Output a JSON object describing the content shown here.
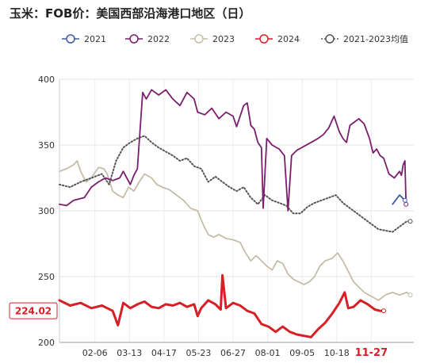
{
  "chart_data": {
    "type": "line",
    "title": "玉米：FOB价：美国西部沿海港口地区（日）",
    "ylim": [
      200,
      400
    ],
    "y_ticks": [
      200,
      250,
      300,
      350,
      400
    ],
    "x_ticks": [
      "02-06",
      "03-13",
      "04-17",
      "05-23",
      "06-27",
      "08-01",
      "09-05",
      "10-18",
      "11-27"
    ],
    "grid": true,
    "legend_position": "top",
    "last_value_label": "224.02",
    "series": [
      {
        "name": "2021",
        "color": "#3d5aa8",
        "style": "solid",
        "points": [
          [
            0.94,
            305
          ],
          [
            0.96,
            312
          ],
          [
            0.975,
            308
          ]
        ]
      },
      {
        "name": "2022",
        "color": "#7a1e6e",
        "style": "solid",
        "points": [
          [
            0.0,
            305
          ],
          [
            0.02,
            304
          ],
          [
            0.04,
            308
          ],
          [
            0.07,
            310
          ],
          [
            0.09,
            318
          ],
          [
            0.11,
            322
          ],
          [
            0.13,
            325
          ],
          [
            0.15,
            323
          ],
          [
            0.17,
            325
          ],
          [
            0.18,
            330
          ],
          [
            0.2,
            320
          ],
          [
            0.21,
            327
          ],
          [
            0.22,
            332
          ],
          [
            0.235,
            390
          ],
          [
            0.245,
            385
          ],
          [
            0.26,
            392
          ],
          [
            0.28,
            388
          ],
          [
            0.3,
            392
          ],
          [
            0.32,
            385
          ],
          [
            0.34,
            380
          ],
          [
            0.36,
            390
          ],
          [
            0.38,
            385
          ],
          [
            0.39,
            375
          ],
          [
            0.41,
            373
          ],
          [
            0.43,
            378
          ],
          [
            0.45,
            370
          ],
          [
            0.47,
            375
          ],
          [
            0.49,
            372
          ],
          [
            0.5,
            364
          ],
          [
            0.52,
            380
          ],
          [
            0.53,
            382
          ],
          [
            0.54,
            365
          ],
          [
            0.55,
            362
          ],
          [
            0.56,
            352
          ],
          [
            0.57,
            348
          ],
          [
            0.575,
            302
          ],
          [
            0.585,
            355
          ],
          [
            0.6,
            350
          ],
          [
            0.62,
            347
          ],
          [
            0.635,
            342
          ],
          [
            0.645,
            300
          ],
          [
            0.655,
            342
          ],
          [
            0.67,
            346
          ],
          [
            0.69,
            349
          ],
          [
            0.71,
            352
          ],
          [
            0.73,
            355
          ],
          [
            0.745,
            358
          ],
          [
            0.76,
            363
          ],
          [
            0.775,
            372
          ],
          [
            0.79,
            360
          ],
          [
            0.8,
            355
          ],
          [
            0.81,
            352
          ],
          [
            0.82,
            365
          ],
          [
            0.835,
            368
          ],
          [
            0.845,
            370
          ],
          [
            0.86,
            366
          ],
          [
            0.875,
            355
          ],
          [
            0.885,
            344
          ],
          [
            0.895,
            347
          ],
          [
            0.905,
            342
          ],
          [
            0.915,
            340
          ],
          [
            0.93,
            328
          ],
          [
            0.945,
            325
          ],
          [
            0.96,
            330
          ],
          [
            0.965,
            327
          ],
          [
            0.97,
            335
          ],
          [
            0.975,
            338
          ],
          [
            0.978,
            305
          ]
        ]
      },
      {
        "name": "2023",
        "color": "#c8bca8",
        "style": "solid",
        "points": [
          [
            0.0,
            330
          ],
          [
            0.02,
            332
          ],
          [
            0.04,
            335
          ],
          [
            0.05,
            338
          ],
          [
            0.06,
            330
          ],
          [
            0.075,
            322
          ],
          [
            0.09,
            325
          ],
          [
            0.11,
            333
          ],
          [
            0.125,
            332
          ],
          [
            0.135,
            328
          ],
          [
            0.15,
            315
          ],
          [
            0.165,
            312
          ],
          [
            0.18,
            310
          ],
          [
            0.195,
            318
          ],
          [
            0.21,
            315
          ],
          [
            0.225,
            322
          ],
          [
            0.24,
            328
          ],
          [
            0.26,
            325
          ],
          [
            0.275,
            320
          ],
          [
            0.29,
            318
          ],
          [
            0.31,
            316
          ],
          [
            0.33,
            312
          ],
          [
            0.35,
            308
          ],
          [
            0.37,
            302
          ],
          [
            0.39,
            300
          ],
          [
            0.405,
            290
          ],
          [
            0.42,
            282
          ],
          [
            0.435,
            280
          ],
          [
            0.45,
            282
          ],
          [
            0.47,
            279
          ],
          [
            0.49,
            278
          ],
          [
            0.51,
            276
          ],
          [
            0.525,
            268
          ],
          [
            0.54,
            262
          ],
          [
            0.555,
            266
          ],
          [
            0.57,
            262
          ],
          [
            0.585,
            258
          ],
          [
            0.6,
            255
          ],
          [
            0.615,
            262
          ],
          [
            0.63,
            260
          ],
          [
            0.645,
            252
          ],
          [
            0.66,
            248
          ],
          [
            0.675,
            246
          ],
          [
            0.69,
            244
          ],
          [
            0.705,
            246
          ],
          [
            0.72,
            250
          ],
          [
            0.735,
            258
          ],
          [
            0.75,
            262
          ],
          [
            0.77,
            264
          ],
          [
            0.785,
            268
          ],
          [
            0.8,
            262
          ],
          [
            0.815,
            254
          ],
          [
            0.83,
            246
          ],
          [
            0.845,
            242
          ],
          [
            0.86,
            238
          ],
          [
            0.88,
            235
          ],
          [
            0.9,
            232
          ],
          [
            0.92,
            236
          ],
          [
            0.94,
            238
          ],
          [
            0.96,
            236
          ],
          [
            0.98,
            238
          ],
          [
            0.99,
            236
          ]
        ]
      },
      {
        "name": "2024",
        "color": "#d71f26",
        "style": "solid-thick",
        "points": [
          [
            0.0,
            232
          ],
          [
            0.03,
            228
          ],
          [
            0.06,
            230
          ],
          [
            0.09,
            226
          ],
          [
            0.12,
            228
          ],
          [
            0.15,
            224
          ],
          [
            0.165,
            213
          ],
          [
            0.18,
            230
          ],
          [
            0.2,
            226
          ],
          [
            0.22,
            229
          ],
          [
            0.24,
            231
          ],
          [
            0.26,
            227
          ],
          [
            0.28,
            226
          ],
          [
            0.3,
            229
          ],
          [
            0.32,
            228
          ],
          [
            0.34,
            230
          ],
          [
            0.36,
            227
          ],
          [
            0.38,
            229
          ],
          [
            0.39,
            220
          ],
          [
            0.4,
            226
          ],
          [
            0.42,
            232
          ],
          [
            0.44,
            229
          ],
          [
            0.455,
            225
          ],
          [
            0.46,
            251
          ],
          [
            0.47,
            226
          ],
          [
            0.49,
            230
          ],
          [
            0.51,
            228
          ],
          [
            0.53,
            224
          ],
          [
            0.55,
            222
          ],
          [
            0.57,
            214
          ],
          [
            0.59,
            212
          ],
          [
            0.61,
            208
          ],
          [
            0.63,
            212
          ],
          [
            0.65,
            208
          ],
          [
            0.67,
            206
          ],
          [
            0.69,
            205
          ],
          [
            0.71,
            204
          ],
          [
            0.73,
            210
          ],
          [
            0.75,
            215
          ],
          [
            0.77,
            222
          ],
          [
            0.79,
            230
          ],
          [
            0.805,
            238
          ],
          [
            0.815,
            226
          ],
          [
            0.83,
            227
          ],
          [
            0.85,
            232
          ],
          [
            0.87,
            229
          ],
          [
            0.89,
            225
          ],
          [
            0.905,
            224
          ],
          [
            0.915,
            224
          ]
        ]
      },
      {
        "name": "2021-2023均值",
        "color": "#555555",
        "style": "dotted",
        "points": [
          [
            0.0,
            320
          ],
          [
            0.03,
            318
          ],
          [
            0.06,
            322
          ],
          [
            0.09,
            325
          ],
          [
            0.12,
            328
          ],
          [
            0.14,
            320
          ],
          [
            0.16,
            338
          ],
          [
            0.18,
            348
          ],
          [
            0.2,
            352
          ],
          [
            0.22,
            355
          ],
          [
            0.24,
            357
          ],
          [
            0.26,
            352
          ],
          [
            0.28,
            348
          ],
          [
            0.3,
            345
          ],
          [
            0.32,
            342
          ],
          [
            0.34,
            338
          ],
          [
            0.36,
            340
          ],
          [
            0.38,
            334
          ],
          [
            0.4,
            332
          ],
          [
            0.42,
            322
          ],
          [
            0.44,
            326
          ],
          [
            0.46,
            322
          ],
          [
            0.48,
            318
          ],
          [
            0.5,
            315
          ],
          [
            0.52,
            318
          ],
          [
            0.54,
            310
          ],
          [
            0.56,
            305
          ],
          [
            0.58,
            312
          ],
          [
            0.6,
            308
          ],
          [
            0.62,
            306
          ],
          [
            0.64,
            304
          ],
          [
            0.66,
            298
          ],
          [
            0.68,
            298
          ],
          [
            0.7,
            303
          ],
          [
            0.72,
            306
          ],
          [
            0.74,
            308
          ],
          [
            0.76,
            310
          ],
          [
            0.78,
            312
          ],
          [
            0.8,
            306
          ],
          [
            0.82,
            302
          ],
          [
            0.84,
            298
          ],
          [
            0.86,
            294
          ],
          [
            0.88,
            290
          ],
          [
            0.9,
            286
          ],
          [
            0.92,
            285
          ],
          [
            0.94,
            284
          ],
          [
            0.96,
            288
          ],
          [
            0.98,
            292
          ],
          [
            0.99,
            292
          ]
        ]
      }
    ]
  }
}
